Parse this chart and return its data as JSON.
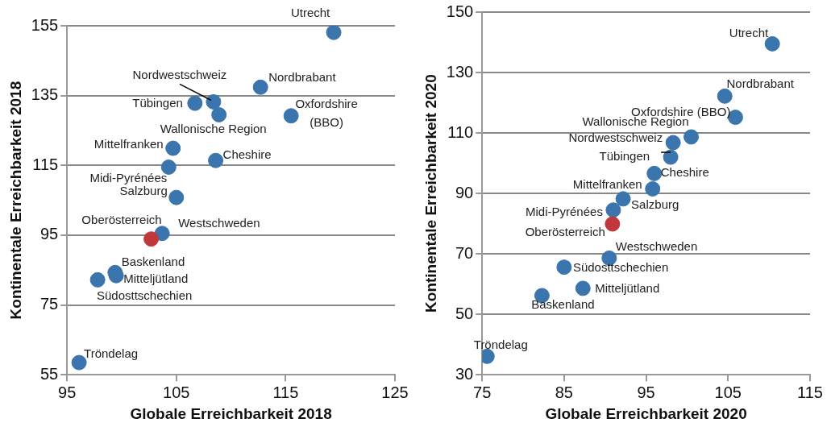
{
  "chart_data": [
    {
      "type": "scatter",
      "xlabel": "Globale Erreichbarkeit 2018",
      "ylabel": "Kontinentale Erreichbarkeit 2018",
      "xlim": [
        95,
        125
      ],
      "ylim": [
        55,
        155
      ],
      "xticks": [
        95,
        105,
        115,
        125
      ],
      "yticks": [
        55,
        75,
        95,
        115,
        135,
        155
      ],
      "grid": "y",
      "marker": "circle",
      "x": [
        119.4,
        112.7,
        108.4,
        106.7,
        108.9,
        115.5,
        104.7,
        108.6,
        104.3,
        105.0,
        103.7,
        102.7,
        99.4,
        99.5,
        97.8,
        96.1
      ],
      "values": [
        153.1,
        137.4,
        133.2,
        132.8,
        129.5,
        129.2,
        119.9,
        116.4,
        114.5,
        105.8,
        95.5,
        93.9,
        84.3,
        83.4,
        82.2,
        58.5
      ],
      "colors": [
        "#3a75ad",
        "#3a75ad",
        "#3a75ad",
        "#3a75ad",
        "#3a75ad",
        "#3a75ad",
        "#3a75ad",
        "#3a75ad",
        "#3a75ad",
        "#3a75ad",
        "#3a75ad",
        "#c0383b",
        "#3a75ad",
        "#3a75ad",
        "#3a75ad",
        "#3a75ad"
      ],
      "annotations": [
        {
          "text": "Utrecht",
          "x": 119.4,
          "y": 153.1
        },
        {
          "text": "Nordbrabant",
          "x": 112.7,
          "y": 137.4
        },
        {
          "text": "Nordwestschweiz",
          "x": 108.4,
          "y": 133.2
        },
        {
          "text": "Tübingen",
          "x": 106.7,
          "y": 132.8
        },
        {
          "text": "Wallonische Region",
          "x": 108.9,
          "y": 129.5
        },
        {
          "text": "Oxfordshire (BBO)",
          "x": 115.5,
          "y": 129.2
        },
        {
          "text": "Mittelfranken",
          "x": 104.7,
          "y": 119.9
        },
        {
          "text": "Cheshire",
          "x": 108.6,
          "y": 116.4
        },
        {
          "text": "Midi-Pyrénées",
          "x": 104.3,
          "y": 114.5
        },
        {
          "text": "Salzburg",
          "x": 105.0,
          "y": 105.8
        },
        {
          "text": "Westschweden",
          "x": 103.7,
          "y": 95.5
        },
        {
          "text": "Oberösterreich",
          "x": 102.7,
          "y": 93.9
        },
        {
          "text": "Baskenland",
          "x": 99.4,
          "y": 84.3
        },
        {
          "text": "Mitteljütland",
          "x": 99.5,
          "y": 83.4
        },
        {
          "text": "Südosttschechien",
          "x": 97.8,
          "y": 82.2
        },
        {
          "text": "Tröndelag",
          "x": 96.1,
          "y": 58.5
        }
      ]
    },
    {
      "type": "scatter",
      "xlabel": "Globale Erreichbarkeit 2020",
      "ylabel": "Kontinentale Erreichbarkeit 2020",
      "xlim": [
        75,
        115
      ],
      "ylim": [
        30,
        150
      ],
      "xticks": [
        75,
        85,
        95,
        105,
        115
      ],
      "yticks": [
        30,
        50,
        70,
        90,
        110,
        130,
        150
      ],
      "grid": "y",
      "marker": "circle",
      "x": [
        110.4,
        104.6,
        98.3,
        98.0,
        100.5,
        105.9,
        95.8,
        96.0,
        91.0,
        92.2,
        90.5,
        90.9,
        82.3,
        87.3,
        85.0,
        75.6
      ],
      "values": [
        139.5,
        122.2,
        106.8,
        102.0,
        108.7,
        115.2,
        91.5,
        96.6,
        84.5,
        88.2,
        68.6,
        79.9,
        56.2,
        58.6,
        65.6,
        36.1
      ],
      "colors": [
        "#3a75ad",
        "#3a75ad",
        "#3a75ad",
        "#3a75ad",
        "#3a75ad",
        "#3a75ad",
        "#3a75ad",
        "#3a75ad",
        "#3a75ad",
        "#3a75ad",
        "#3a75ad",
        "#c0383b",
        "#3a75ad",
        "#3a75ad",
        "#3a75ad",
        "#3a75ad"
      ],
      "annotations": [
        {
          "text": "Utrecht",
          "x": 110.4,
          "y": 139.5
        },
        {
          "text": "Nordbrabant",
          "x": 104.6,
          "y": 122.2
        },
        {
          "text": "Nordwestschweiz",
          "x": 98.3,
          "y": 106.8
        },
        {
          "text": "Tübingen",
          "x": 98.0,
          "y": 102.0
        },
        {
          "text": "Wallonische Region",
          "x": 100.5,
          "y": 108.7
        },
        {
          "text": "Oxfordshire (BBO)",
          "x": 105.9,
          "y": 115.2
        },
        {
          "text": "Mittelfranken",
          "x": 95.8,
          "y": 91.5
        },
        {
          "text": "Cheshire",
          "x": 96.0,
          "y": 96.6
        },
        {
          "text": "Midi-Pyrénées",
          "x": 91.0,
          "y": 84.5
        },
        {
          "text": "Salzburg",
          "x": 92.2,
          "y": 88.2
        },
        {
          "text": "Westschweden",
          "x": 90.5,
          "y": 68.6
        },
        {
          "text": "Oberösterreich",
          "x": 90.9,
          "y": 79.9
        },
        {
          "text": "Baskenland",
          "x": 82.3,
          "y": 56.2
        },
        {
          "text": "Mitteljütland",
          "x": 87.3,
          "y": 58.6
        },
        {
          "text": "Südosttschechien",
          "x": 85.0,
          "y": 65.6
        },
        {
          "text": "Tröndelag",
          "x": 75.6,
          "y": 36.1
        }
      ]
    }
  ]
}
